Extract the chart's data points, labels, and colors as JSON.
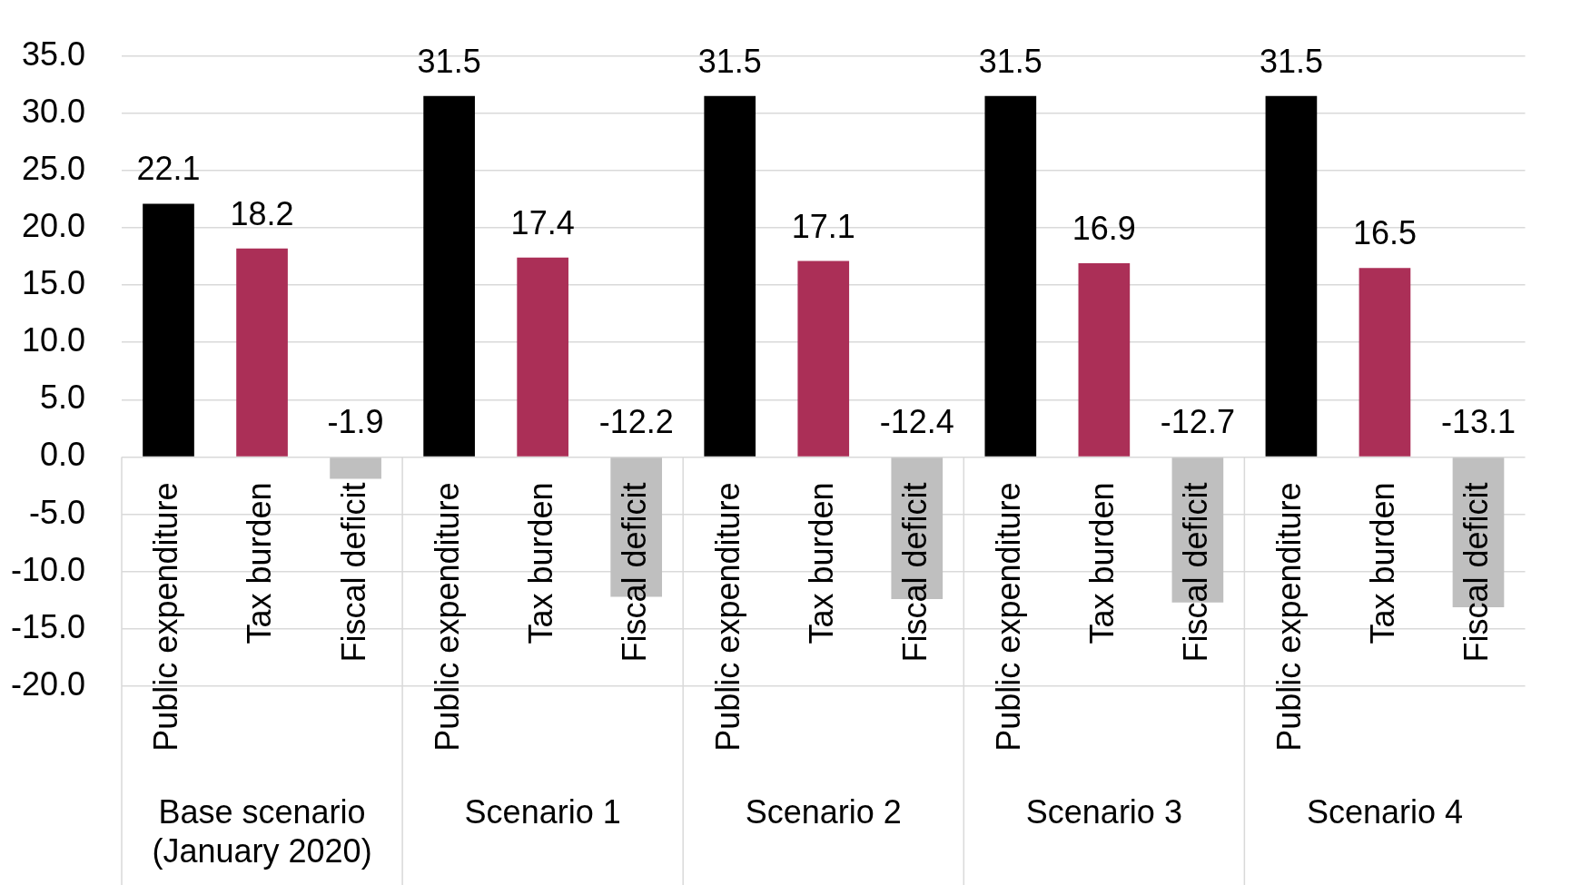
{
  "chart_data": {
    "type": "bar",
    "categories": [
      "Base scenario (January 2020)",
      "Scenario 1",
      "Scenario 2",
      "Scenario 3",
      "Scenario 4"
    ],
    "series": [
      {
        "name": "Public expenditure",
        "color": "#000000",
        "values": [
          22.1,
          31.5,
          31.5,
          31.5,
          31.5
        ]
      },
      {
        "name": "Tax burden",
        "color": "#ab2f57",
        "values": [
          18.2,
          17.4,
          17.1,
          16.9,
          16.5
        ]
      },
      {
        "name": "Fiscal deficit",
        "color": "#bfbfbf",
        "values": [
          -1.9,
          -12.2,
          -12.4,
          -12.7,
          -13.1
        ]
      }
    ],
    "ylim": [
      -20,
      35
    ],
    "yticks": [
      {
        "value": -20,
        "label": "-20.0"
      },
      {
        "value": -15,
        "label": "-15.0"
      },
      {
        "value": -10,
        "label": "-10.0"
      },
      {
        "value": -5,
        "label": "-5.0"
      },
      {
        "value": 0,
        "label": "0.0"
      },
      {
        "value": 5,
        "label": "5.0"
      },
      {
        "value": 10,
        "label": "10.0"
      },
      {
        "value": 15,
        "label": "15.0"
      },
      {
        "value": 20,
        "label": "20.0"
      },
      {
        "value": 25,
        "label": "25.0"
      },
      {
        "value": 30,
        "label": "30.0"
      },
      {
        "value": 35,
        "label": "35.0"
      }
    ],
    "grid": "y",
    "data_labels": true
  }
}
